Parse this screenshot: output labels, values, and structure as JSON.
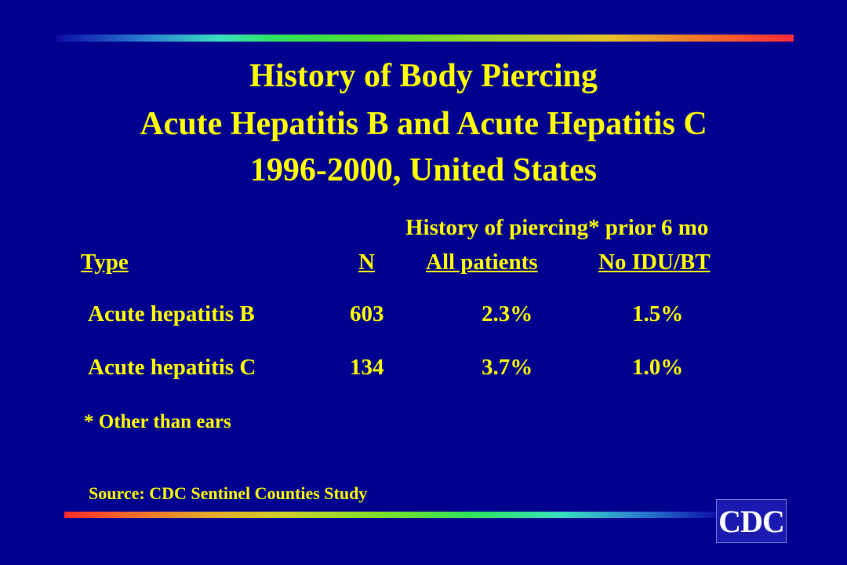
{
  "title": {
    "line1": "History of Body Piercing",
    "line2": "Acute Hepatitis B and Acute Hepatitis C",
    "line3": "1996-2000, United States"
  },
  "table": {
    "caption": "History of piercing* prior 6 mo",
    "headers": [
      "Type",
      "N",
      "All patients",
      "No IDU/BT"
    ],
    "rows": [
      [
        "Acute hepatitis B",
        "603",
        "2.3%",
        "1.5%"
      ],
      [
        "Acute hepatitis C",
        "134",
        "3.7%",
        "1.0%"
      ]
    ]
  },
  "footnote": "* Other than ears",
  "source": "Source: CDC Sentinel Counties Study",
  "logo": {
    "text": "CDC"
  },
  "colors": {
    "background": "#00008f",
    "text": "#ffff00"
  }
}
